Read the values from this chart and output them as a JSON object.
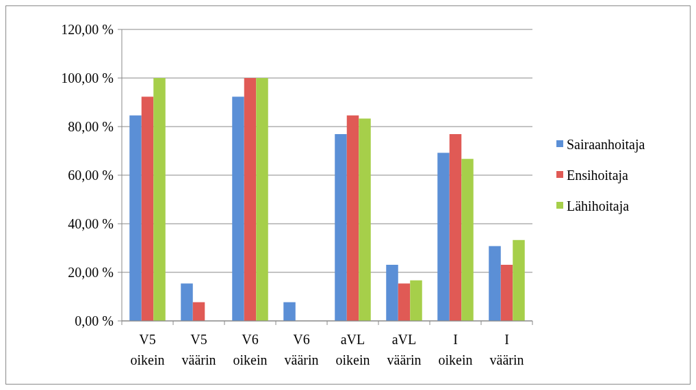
{
  "chart_data": {
    "type": "bar",
    "categories": [
      "V5 oikein",
      "V5 väärin",
      "V6 oikein",
      "V6 väärin",
      "aVL oikein",
      "aVL väärin",
      "I oikein",
      "I väärin"
    ],
    "series": [
      {
        "name": "Sairaanhoitaja",
        "color": "#5b8fd6",
        "values": [
          84.6,
          15.4,
          92.3,
          7.7,
          76.9,
          23.1,
          69.2,
          30.8
        ]
      },
      {
        "name": "Ensihoitaja",
        "color": "#e05a55",
        "values": [
          92.3,
          7.7,
          100,
          0,
          84.6,
          15.4,
          76.9,
          23.1
        ]
      },
      {
        "name": "Lähihoitaja",
        "color": "#a6cf4a",
        "values": [
          100,
          0,
          100,
          0,
          83.3,
          16.7,
          66.7,
          33.3
        ]
      }
    ],
    "ylim": [
      0,
      120
    ],
    "yticks": [
      {
        "value": 0,
        "label": "0,00 %"
      },
      {
        "value": 20,
        "label": "20,00 %"
      },
      {
        "value": 40,
        "label": "40,00 %"
      },
      {
        "value": 60,
        "label": "60,00 %"
      },
      {
        "value": 80,
        "label": "80,00 %"
      },
      {
        "value": 100,
        "label": "100,00 %"
      },
      {
        "value": 120,
        "label": "120,00 %"
      }
    ],
    "grid": "y",
    "legend": "right"
  }
}
